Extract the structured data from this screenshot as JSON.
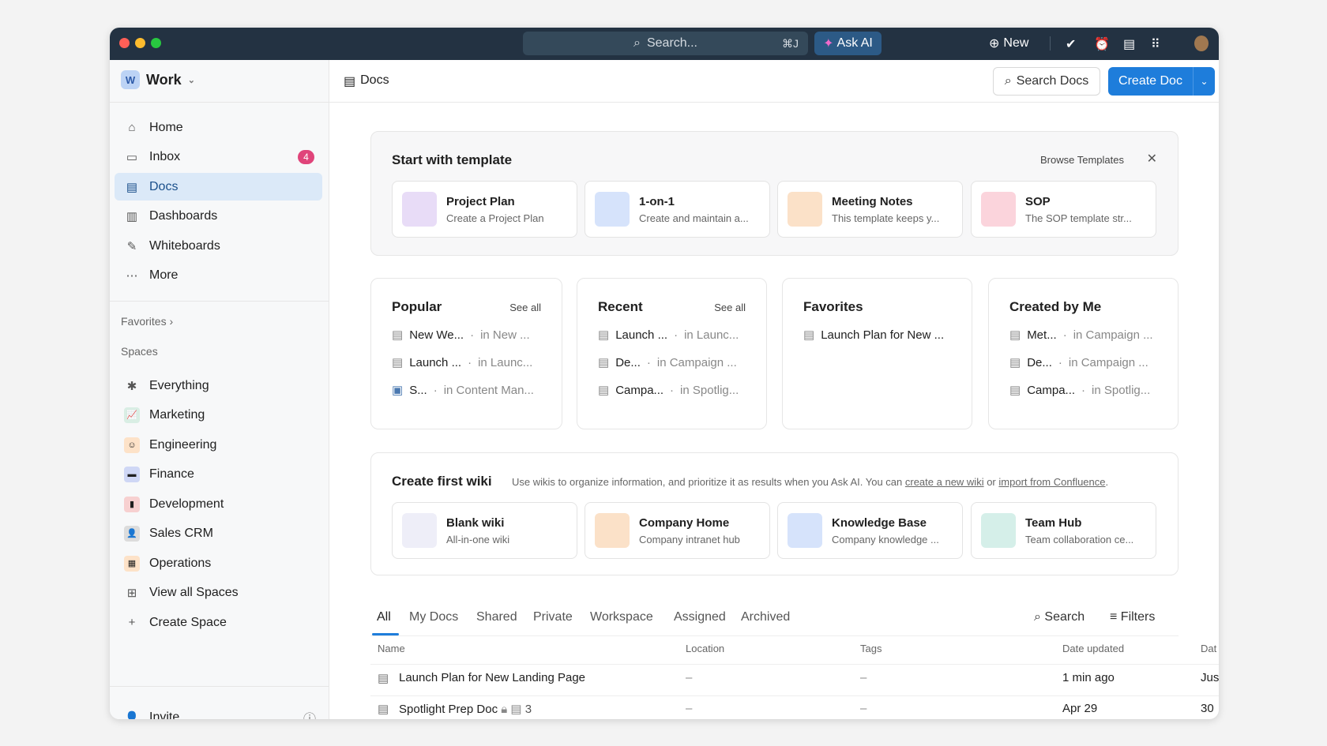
{
  "titlebar": {
    "search_placeholder": "Search...",
    "search_shortcut": "⌘J",
    "ask_ai": "Ask AI",
    "new": "New"
  },
  "workspace": {
    "initial": "W",
    "name": "Work"
  },
  "sidebar": {
    "items": [
      {
        "label": "Home",
        "icon": "home-icon"
      },
      {
        "label": "Inbox",
        "icon": "inbox-icon",
        "count": "4"
      },
      {
        "label": "Docs",
        "icon": "doc-icon",
        "active": true
      },
      {
        "label": "Dashboards",
        "icon": "dashboard-icon"
      },
      {
        "label": "Whiteboards",
        "icon": "whiteboard-icon"
      },
      {
        "label": "More",
        "icon": "more-icon"
      }
    ],
    "favorites": "Favorites",
    "spaces_label": "Spaces",
    "spaces": [
      {
        "label": "Everything"
      },
      {
        "label": "Marketing",
        "color": "#d9eee4"
      },
      {
        "label": "Engineering",
        "color": "#fde2c8"
      },
      {
        "label": "Finance",
        "color": "#cfd7f5"
      },
      {
        "label": "Development",
        "color": "#f7d0d0"
      },
      {
        "label": "Sales CRM",
        "color": "#dcdcdc"
      },
      {
        "label": "Operations",
        "color": "#fde2c8"
      },
      {
        "label": "View all Spaces"
      },
      {
        "label": "Create Space"
      }
    ],
    "invite": "Invite"
  },
  "header": {
    "breadcrumb": "Docs",
    "search_docs": "Search Docs",
    "create_doc": "Create Doc"
  },
  "templates": {
    "title": "Start with template",
    "browse": "Browse Templates",
    "items": [
      {
        "title": "Project Plan",
        "desc": "Create a Project Plan",
        "color": "#e8dcf7"
      },
      {
        "title": "1-on-1",
        "desc": "Create and maintain a...",
        "color": "#d6e3fb"
      },
      {
        "title": "Meeting Notes",
        "desc": "This template keeps y...",
        "color": "#fbe1c8"
      },
      {
        "title": "SOP",
        "desc": "The SOP template str...",
        "color": "#fbd4dc"
      }
    ]
  },
  "lists": [
    {
      "title": "Popular",
      "see_all": "See all",
      "rows": [
        {
          "name": "New We...",
          "loc": "in New ..."
        },
        {
          "name": "Launch ...",
          "loc": "in Launc..."
        },
        {
          "name": "S...",
          "loc": "in Content Man..."
        }
      ]
    },
    {
      "title": "Recent",
      "see_all": "See all",
      "rows": [
        {
          "name": "Launch ...",
          "loc": "in Launc..."
        },
        {
          "name": "De...",
          "loc": "in Campaign ..."
        },
        {
          "name": "Campa...",
          "loc": "in Spotlig..."
        }
      ]
    },
    {
      "title": "Favorites",
      "rows": [
        {
          "name": "Launch Plan for New ...",
          "loc": ""
        }
      ]
    },
    {
      "title": "Created by Me",
      "rows": [
        {
          "name": "Met...",
          "loc": "in Campaign ..."
        },
        {
          "name": "De...",
          "loc": "in Campaign ..."
        },
        {
          "name": "Campa...",
          "loc": "in Spotlig..."
        }
      ]
    }
  ],
  "wiki": {
    "title": "Create first wiki",
    "desc": "Use wikis to organize information, and prioritize it as results when you Ask AI. You can ",
    "link1": "create a new wiki",
    "or": " or ",
    "link2": "import from Confluence",
    "end": ".",
    "items": [
      {
        "title": "Blank wiki",
        "desc": "All-in-one wiki",
        "color": "#eeeef8"
      },
      {
        "title": "Company Home",
        "desc": "Company intranet hub",
        "color": "#fbe1c8"
      },
      {
        "title": "Knowledge Base",
        "desc": "Company knowledge ...",
        "color": "#d6e3fb"
      },
      {
        "title": "Team Hub",
        "desc": "Team collaboration ce...",
        "color": "#d5efe9"
      }
    ]
  },
  "docs": {
    "tabs": [
      "All",
      "My Docs",
      "Shared",
      "Private",
      "Workspace",
      "Assigned",
      "Archived"
    ],
    "search": "Search",
    "filters": "Filters",
    "columns": [
      "Name",
      "Location",
      "Tags",
      "Date updated",
      "Dat"
    ],
    "rows": [
      {
        "name": "Launch Plan for New Landing Page",
        "location": "–",
        "tags": "–",
        "updated": "1 min ago",
        "created": "Jus"
      },
      {
        "name": "Spotlight Prep Doc",
        "subcount": "3",
        "location": "–",
        "tags": "–",
        "updated": "Apr 29",
        "created": "30"
      }
    ]
  }
}
